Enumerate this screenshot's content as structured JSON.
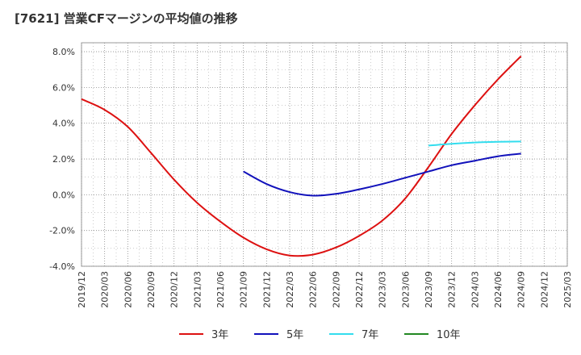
{
  "chart_data": {
    "type": "line",
    "title": "[7621]  営業CFマージンの平均値の推移",
    "xlabel": "",
    "ylabel": "",
    "ylim": [
      -4,
      8.5
    ],
    "yticks": [
      -4,
      -2,
      0,
      2,
      4,
      6,
      8
    ],
    "ytick_labels": [
      "-4.0%",
      "-2.0%",
      "0.0%",
      "2.0%",
      "4.0%",
      "6.0%",
      "8.0%"
    ],
    "x_categories": [
      "2019/12",
      "2020/03",
      "2020/06",
      "2020/09",
      "2020/12",
      "2021/03",
      "2021/06",
      "2021/09",
      "2021/12",
      "2022/03",
      "2022/06",
      "2022/09",
      "2022/12",
      "2023/03",
      "2023/06",
      "2023/09",
      "2023/12",
      "2024/03",
      "2024/06",
      "2024/09",
      "2024/12",
      "2025/03"
    ],
    "grid": true,
    "legend_position": "bottom",
    "series": [
      {
        "name": "3年",
        "color": "#dd1111",
        "points": [
          [
            "2019/12",
            5.35
          ],
          [
            "2020/03",
            4.75
          ],
          [
            "2020/06",
            3.8
          ],
          [
            "2020/09",
            2.35
          ],
          [
            "2020/12",
            0.85
          ],
          [
            "2021/03",
            -0.45
          ],
          [
            "2021/06",
            -1.5
          ],
          [
            "2021/09",
            -2.4
          ],
          [
            "2021/12",
            -3.05
          ],
          [
            "2022/03",
            -3.4
          ],
          [
            "2022/06",
            -3.35
          ],
          [
            "2022/09",
            -2.95
          ],
          [
            "2022/12",
            -2.3
          ],
          [
            "2023/03",
            -1.45
          ],
          [
            "2023/06",
            -0.2
          ],
          [
            "2023/09",
            1.55
          ],
          [
            "2023/12",
            3.4
          ],
          [
            "2024/03",
            5.0
          ],
          [
            "2024/06",
            6.45
          ],
          [
            "2024/09",
            7.75
          ]
        ]
      },
      {
        "name": "5年",
        "color": "#1111bb",
        "points": [
          [
            "2021/09",
            1.3
          ],
          [
            "2021/12",
            0.6
          ],
          [
            "2022/03",
            0.15
          ],
          [
            "2022/06",
            -0.05
          ],
          [
            "2022/09",
            0.05
          ],
          [
            "2022/12",
            0.3
          ],
          [
            "2023/03",
            0.6
          ],
          [
            "2023/06",
            0.95
          ],
          [
            "2023/09",
            1.3
          ],
          [
            "2023/12",
            1.65
          ],
          [
            "2024/03",
            1.9
          ],
          [
            "2024/06",
            2.15
          ],
          [
            "2024/09",
            2.3
          ]
        ]
      },
      {
        "name": "7年",
        "color": "#33ddee",
        "points": [
          [
            "2023/09",
            2.75
          ],
          [
            "2023/12",
            2.85
          ],
          [
            "2024/03",
            2.92
          ],
          [
            "2024/06",
            2.96
          ],
          [
            "2024/09",
            2.98
          ]
        ]
      },
      {
        "name": "10年",
        "color": "#228822",
        "points": []
      }
    ]
  }
}
